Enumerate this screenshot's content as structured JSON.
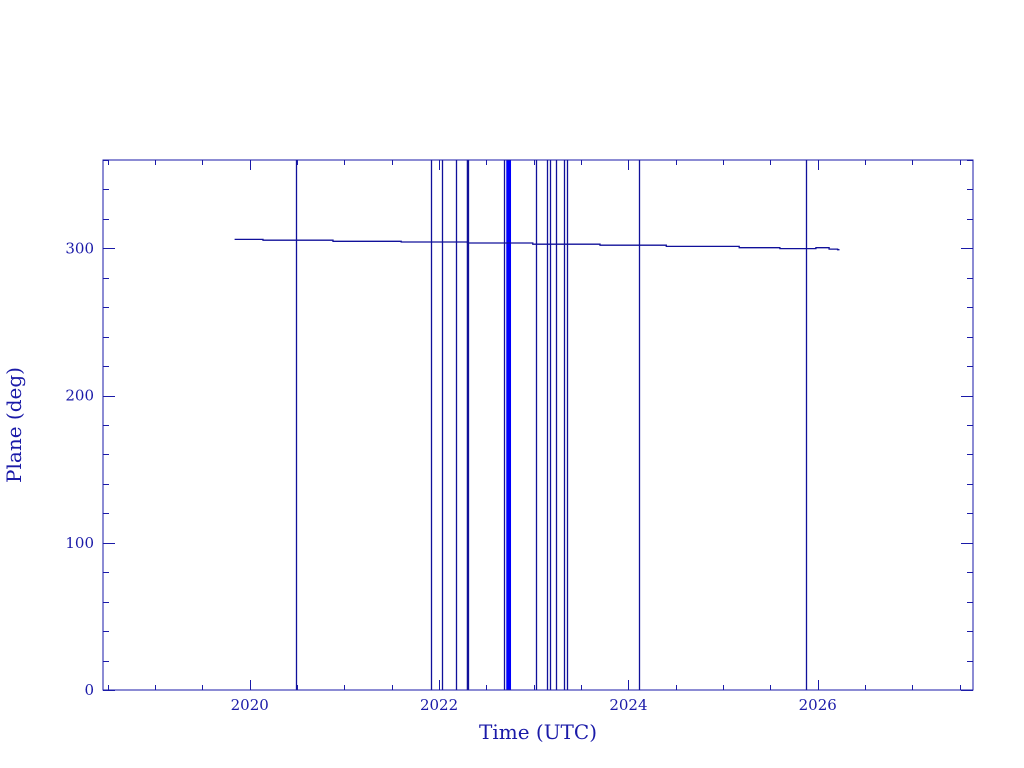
{
  "chart_data": {
    "type": "line",
    "title": "",
    "xlabel": "Time (UTC)",
    "ylabel": "Plane (deg)",
    "xlim": [
      2018.45,
      2027.64
    ],
    "ylim": [
      0,
      360
    ],
    "xticks": [
      2020,
      2022,
      2024,
      2026
    ],
    "xtick_labels": [
      "2020",
      "2022",
      "2024",
      "2026"
    ],
    "yticks": [
      0,
      100,
      200,
      300
    ],
    "ytick_labels": [
      "0",
      "100",
      "200",
      "300"
    ],
    "x_minor_step": 0.5,
    "y_minor_step": 20,
    "grid": false,
    "colors": {
      "axes": "#1a1aa8",
      "series": "#10109a",
      "dense_block": "#0000ff"
    },
    "series": [
      {
        "x": [
          2019.84,
          2020.14,
          2020.14,
          2020.88,
          2020.88,
          2021.6,
          2021.6,
          2022.3,
          2022.3,
          2022.99,
          2022.99,
          2023.7,
          2023.7,
          2024.4,
          2024.4,
          2025.17,
          2025.17,
          2025.6,
          2025.6,
          2025.98,
          2025.98,
          2026.12,
          2026.12,
          2026.21,
          2026.21,
          2026.23
        ],
        "y": [
          306.1,
          306.1,
          305.5,
          305.5,
          304.8,
          304.8,
          304.3,
          304.3,
          303.6,
          303.6,
          302.8,
          302.8,
          302.1,
          302.1,
          301.3,
          301.3,
          300.4,
          300.4,
          299.8,
          299.8,
          300.4,
          300.4,
          299.5,
          299.5,
          299.1,
          299.1
        ]
      }
    ],
    "vertical_wraps": {
      "x": [
        2020.49,
        2021.92,
        2022.03,
        2022.18,
        2022.29,
        2022.3,
        2022.31,
        2022.69,
        2023.02,
        2023.14,
        2023.17,
        2023.23,
        2023.32,
        2023.35,
        2024.11,
        2025.88
      ],
      "y_range": [
        0,
        360
      ]
    },
    "dense_wrap_band": {
      "x_start": 2022.71,
      "x_end": 2022.76
    }
  }
}
